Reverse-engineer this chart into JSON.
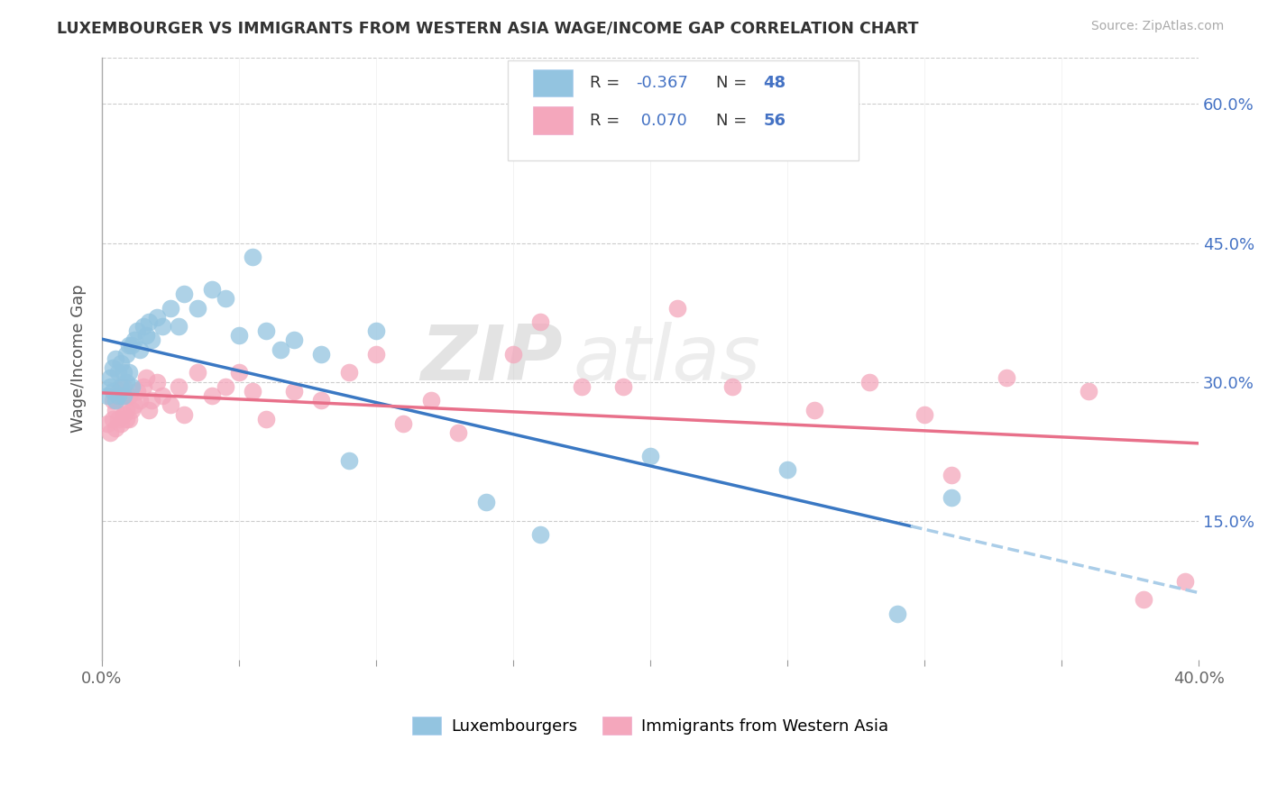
{
  "title": "LUXEMBOURGER VS IMMIGRANTS FROM WESTERN ASIA WAGE/INCOME GAP CORRELATION CHART",
  "source": "Source: ZipAtlas.com",
  "ylabel": "Wage/Income Gap",
  "xlim": [
    0.0,
    0.4
  ],
  "ylim": [
    0.0,
    0.65
  ],
  "xticks": [
    0.0,
    0.05,
    0.1,
    0.15,
    0.2,
    0.25,
    0.3,
    0.35,
    0.4
  ],
  "ytick_positions_right": [
    0.15,
    0.3,
    0.45,
    0.6
  ],
  "ytick_labels_right": [
    "15.0%",
    "30.0%",
    "45.0%",
    "60.0%"
  ],
  "blue_color": "#93c4e0",
  "pink_color": "#f4a7bc",
  "blue_line_color": "#3a78c3",
  "pink_line_color": "#e8708a",
  "dashed_line_color": "#aacde8",
  "legend_r_blue": "-0.367",
  "legend_n_blue": "48",
  "legend_r_pink": "0.070",
  "legend_n_pink": "56",
  "legend_label_blue": "Luxembourgers",
  "legend_label_pink": "Immigrants from Western Asia",
  "watermark": "ZIPatlas",
  "blue_x": [
    0.002,
    0.003,
    0.003,
    0.004,
    0.004,
    0.005,
    0.005,
    0.006,
    0.006,
    0.007,
    0.007,
    0.008,
    0.008,
    0.009,
    0.009,
    0.01,
    0.01,
    0.011,
    0.011,
    0.012,
    0.013,
    0.014,
    0.015,
    0.016,
    0.017,
    0.018,
    0.02,
    0.022,
    0.025,
    0.028,
    0.03,
    0.035,
    0.04,
    0.045,
    0.05,
    0.055,
    0.06,
    0.065,
    0.07,
    0.08,
    0.09,
    0.1,
    0.14,
    0.16,
    0.2,
    0.25,
    0.29,
    0.31
  ],
  "blue_y": [
    0.285,
    0.295,
    0.305,
    0.29,
    0.315,
    0.28,
    0.325,
    0.285,
    0.31,
    0.295,
    0.32,
    0.285,
    0.31,
    0.3,
    0.33,
    0.31,
    0.34,
    0.295,
    0.34,
    0.345,
    0.355,
    0.335,
    0.36,
    0.35,
    0.365,
    0.345,
    0.37,
    0.36,
    0.38,
    0.36,
    0.395,
    0.38,
    0.4,
    0.39,
    0.35,
    0.435,
    0.355,
    0.335,
    0.345,
    0.33,
    0.215,
    0.355,
    0.17,
    0.135,
    0.22,
    0.205,
    0.05,
    0.175
  ],
  "pink_x": [
    0.002,
    0.003,
    0.004,
    0.004,
    0.005,
    0.005,
    0.006,
    0.006,
    0.007,
    0.007,
    0.008,
    0.008,
    0.009,
    0.009,
    0.01,
    0.01,
    0.011,
    0.012,
    0.013,
    0.014,
    0.015,
    0.016,
    0.017,
    0.018,
    0.02,
    0.022,
    0.025,
    0.028,
    0.03,
    0.035,
    0.04,
    0.045,
    0.05,
    0.055,
    0.06,
    0.07,
    0.08,
    0.09,
    0.1,
    0.11,
    0.12,
    0.13,
    0.15,
    0.16,
    0.175,
    0.19,
    0.21,
    0.23,
    0.26,
    0.28,
    0.3,
    0.31,
    0.33,
    0.36,
    0.38,
    0.395
  ],
  "pink_y": [
    0.255,
    0.245,
    0.26,
    0.28,
    0.25,
    0.27,
    0.26,
    0.29,
    0.255,
    0.285,
    0.265,
    0.295,
    0.27,
    0.26,
    0.26,
    0.285,
    0.27,
    0.275,
    0.29,
    0.28,
    0.295,
    0.305,
    0.27,
    0.28,
    0.3,
    0.285,
    0.275,
    0.295,
    0.265,
    0.31,
    0.285,
    0.295,
    0.31,
    0.29,
    0.26,
    0.29,
    0.28,
    0.31,
    0.33,
    0.255,
    0.28,
    0.245,
    0.33,
    0.365,
    0.295,
    0.295,
    0.38,
    0.295,
    0.27,
    0.3,
    0.265,
    0.2,
    0.305,
    0.29,
    0.065,
    0.085
  ],
  "blue_line_start_x": 0.0,
  "blue_line_end_x": 0.295,
  "blue_line_dash_end_x": 0.4,
  "pink_line_start_x": 0.0,
  "pink_line_end_x": 0.4
}
